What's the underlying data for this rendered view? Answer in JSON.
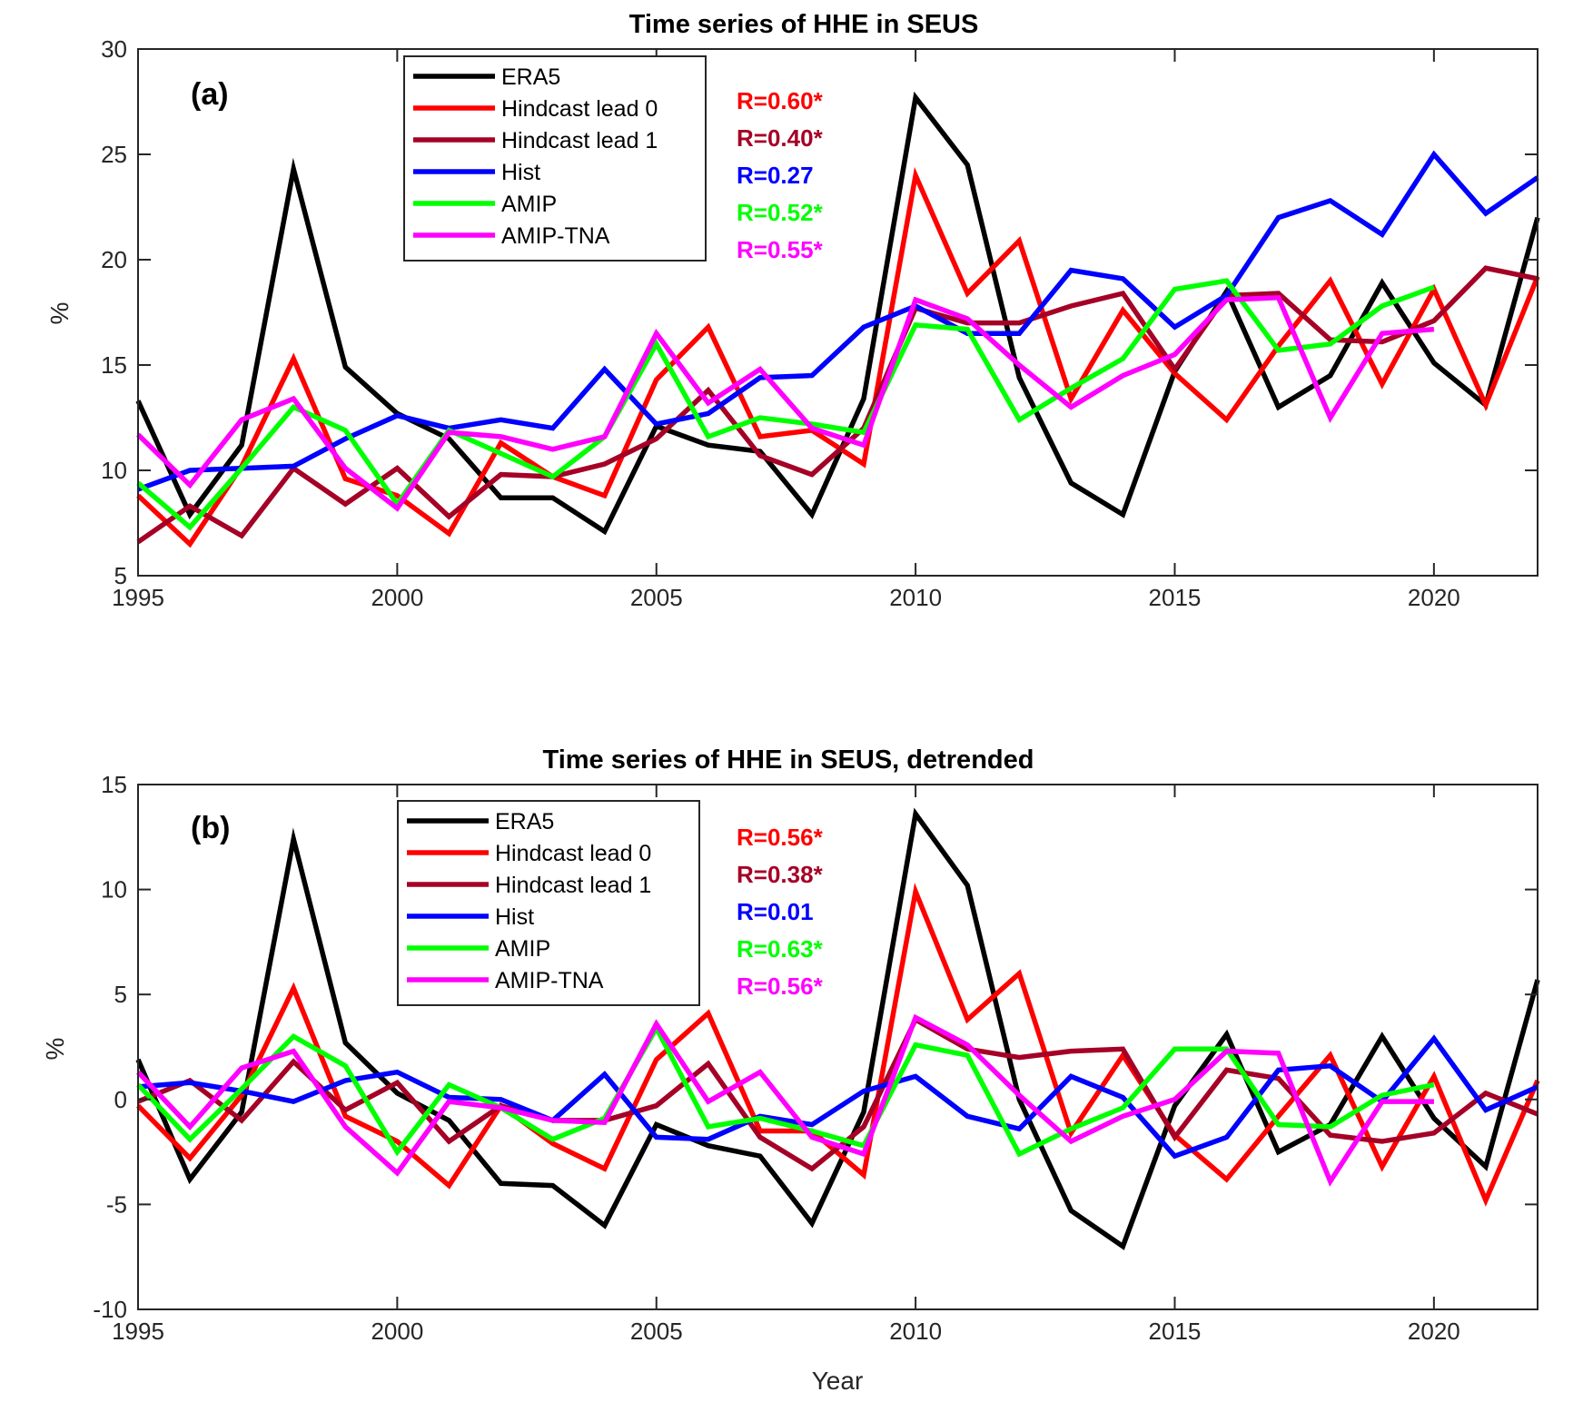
{
  "chart_data": [
    {
      "type": "line",
      "panel_label": "(a)",
      "title": "Time series of HHE in SEUS",
      "xlabel": "",
      "ylabel": "%",
      "xlim": [
        1995,
        2022
      ],
      "ylim": [
        5,
        30
      ],
      "xticks": [
        1995,
        2000,
        2005,
        2010,
        2015,
        2020
      ],
      "yticks": [
        5,
        10,
        15,
        20,
        25,
        30
      ],
      "grid": false,
      "legend_position": "top-center",
      "series": [
        {
          "name": "ERA5",
          "color": "#000000",
          "x_start": 1995,
          "values": [
            13.3,
            7.9,
            11.2,
            24.3,
            14.9,
            12.7,
            11.5,
            8.7,
            8.7,
            7.1,
            12.1,
            11.2,
            10.9,
            7.9,
            13.4,
            27.7,
            24.5,
            14.4,
            9.4,
            7.9,
            14.7,
            18.5,
            13.0,
            14.5,
            18.9,
            15.1,
            13.1,
            22.0
          ]
        },
        {
          "name": "Hindcast lead 0",
          "color": "#ff0000",
          "x_start": 1995,
          "values": [
            8.8,
            6.5,
            10.2,
            15.3,
            9.6,
            8.8,
            7.0,
            11.3,
            9.7,
            8.8,
            14.3,
            16.8,
            11.6,
            11.9,
            10.3,
            24.0,
            18.4,
            20.9,
            13.4,
            17.6,
            14.6,
            12.4,
            15.9,
            19.0,
            14.1,
            18.6,
            13.1,
            19.2
          ]
        },
        {
          "name": "Hindcast lead 1",
          "color": "#a50026",
          "x_start": 1995,
          "values": [
            6.6,
            8.3,
            6.9,
            10.1,
            8.4,
            10.1,
            7.8,
            9.8,
            9.7,
            10.3,
            11.5,
            13.8,
            10.7,
            9.8,
            12.0,
            17.7,
            17.0,
            17.0,
            17.8,
            18.4,
            14.8,
            18.3,
            18.4,
            16.2,
            16.1,
            17.1,
            19.6,
            19.1
          ]
        },
        {
          "name": "Hist",
          "color": "#0000ff",
          "x_start": 1995,
          "values": [
            9.1,
            10.0,
            10.1,
            10.2,
            11.5,
            12.6,
            12.0,
            12.4,
            12.0,
            14.8,
            12.2,
            12.7,
            14.4,
            14.5,
            16.8,
            17.8,
            16.5,
            16.5,
            19.5,
            19.1,
            16.8,
            18.3,
            22.0,
            22.8,
            21.2,
            25.0,
            22.2,
            23.9
          ]
        },
        {
          "name": "AMIP",
          "color": "#00ff00",
          "x_start": 1995,
          "values": [
            9.4,
            7.3,
            10.1,
            13.0,
            11.9,
            8.4,
            11.9,
            10.8,
            9.7,
            11.6,
            16.0,
            11.6,
            12.5,
            12.2,
            11.8,
            16.9,
            16.7,
            12.4,
            13.9,
            15.3,
            18.6,
            19.0,
            15.7,
            16.0,
            17.8,
            18.7
          ]
        },
        {
          "name": "AMIP-TNA",
          "color": "#ff00ff",
          "x_start": 1995,
          "values": [
            11.7,
            9.3,
            12.4,
            13.4,
            10.1,
            8.2,
            11.8,
            11.6,
            11.0,
            11.6,
            16.5,
            13.2,
            14.8,
            12.0,
            11.2,
            18.1,
            17.2,
            15.0,
            13.0,
            14.5,
            15.5,
            18.1,
            18.2,
            12.5,
            16.5,
            16.7
          ]
        }
      ],
      "annotations": [
        {
          "text": "R=0.60*",
          "color": "#ff0000"
        },
        {
          "text": "R=0.40*",
          "color": "#a50026"
        },
        {
          "text": "R=0.27",
          "color": "#0000ff"
        },
        {
          "text": "R=0.52*",
          "color": "#00ff00"
        },
        {
          "text": "R=0.55*",
          "color": "#ff00ff"
        }
      ]
    },
    {
      "type": "line",
      "panel_label": "(b)",
      "title": "Time series of HHE in SEUS, detrended",
      "xlabel": "Year",
      "ylabel": "%",
      "xlim": [
        1995,
        2022
      ],
      "ylim": [
        -10,
        15
      ],
      "xticks": [
        1995,
        2000,
        2005,
        2010,
        2015,
        2020
      ],
      "yticks": [
        -10,
        -5,
        0,
        5,
        10,
        15
      ],
      "grid": false,
      "legend_position": "top-center",
      "series": [
        {
          "name": "ERA5",
          "color": "#000000",
          "x_start": 1995,
          "values": [
            1.9,
            -3.8,
            -0.6,
            12.4,
            2.7,
            0.3,
            -1.0,
            -4.0,
            -4.1,
            -6.0,
            -1.2,
            -2.2,
            -2.7,
            -5.9,
            -0.6,
            13.6,
            10.2,
            0.0,
            -5.3,
            -7.0,
            -0.3,
            3.1,
            -2.5,
            -1.2,
            3.0,
            -0.9,
            -3.2,
            5.7
          ]
        },
        {
          "name": "Hindcast lead 0",
          "color": "#ff0000",
          "x_start": 1995,
          "values": [
            -0.3,
            -2.8,
            0.2,
            5.3,
            -0.8,
            -2.0,
            -4.1,
            -0.3,
            -2.1,
            -3.3,
            1.9,
            4.1,
            -1.5,
            -1.5,
            -3.6,
            9.9,
            3.8,
            6.0,
            -1.6,
            2.1,
            -1.7,
            -3.8,
            -0.8,
            2.1,
            -3.2,
            1.1,
            -4.8,
            0.9
          ]
        },
        {
          "name": "Hindcast lead 1",
          "color": "#a50026",
          "x_start": 1995,
          "values": [
            -0.1,
            0.9,
            -1.0,
            1.8,
            -0.5,
            0.8,
            -2.0,
            -0.3,
            -1.0,
            -1.0,
            -0.3,
            1.7,
            -1.8,
            -3.3,
            -1.3,
            3.8,
            2.4,
            2.0,
            2.3,
            2.4,
            -1.8,
            1.4,
            1.0,
            -1.7,
            -2.0,
            -1.6,
            0.3,
            -0.7
          ]
        },
        {
          "name": "Hist",
          "color": "#0000ff",
          "x_start": 1995,
          "values": [
            0.6,
            0.8,
            0.4,
            -0.1,
            0.9,
            1.3,
            0.1,
            0.0,
            -1.0,
            1.2,
            -1.8,
            -1.9,
            -0.8,
            -1.2,
            0.4,
            1.1,
            -0.8,
            -1.4,
            1.1,
            0.1,
            -2.7,
            -1.8,
            1.4,
            1.6,
            -0.1,
            2.9,
            -0.5,
            0.6
          ]
        },
        {
          "name": "AMIP",
          "color": "#00ff00",
          "x_start": 1995,
          "values": [
            0.7,
            -1.9,
            0.5,
            3.0,
            1.6,
            -2.5,
            0.7,
            -0.4,
            -1.9,
            -0.9,
            3.4,
            -1.3,
            -0.9,
            -1.5,
            -2.2,
            2.6,
            2.1,
            -2.6,
            -1.4,
            -0.4,
            2.4,
            2.4,
            -1.2,
            -1.3,
            0.2,
            0.7
          ]
        },
        {
          "name": "AMIP-TNA",
          "color": "#ff00ff",
          "x_start": 1995,
          "values": [
            1.3,
            -1.3,
            1.5,
            2.3,
            -1.3,
            -3.5,
            -0.1,
            -0.4,
            -1.0,
            -1.1,
            3.6,
            -0.1,
            1.3,
            -1.8,
            -2.6,
            3.9,
            2.6,
            0.2,
            -2.0,
            -0.8,
            0.0,
            2.3,
            2.2,
            -3.9,
            -0.1,
            -0.1
          ]
        }
      ],
      "annotations": [
        {
          "text": "R=0.56*",
          "color": "#ff0000"
        },
        {
          "text": "R=0.38*",
          "color": "#a50026"
        },
        {
          "text": "R=0.01",
          "color": "#0000ff"
        },
        {
          "text": "R=0.63*",
          "color": "#00ff00"
        },
        {
          "text": "R=0.56*",
          "color": "#ff00ff"
        }
      ]
    }
  ]
}
